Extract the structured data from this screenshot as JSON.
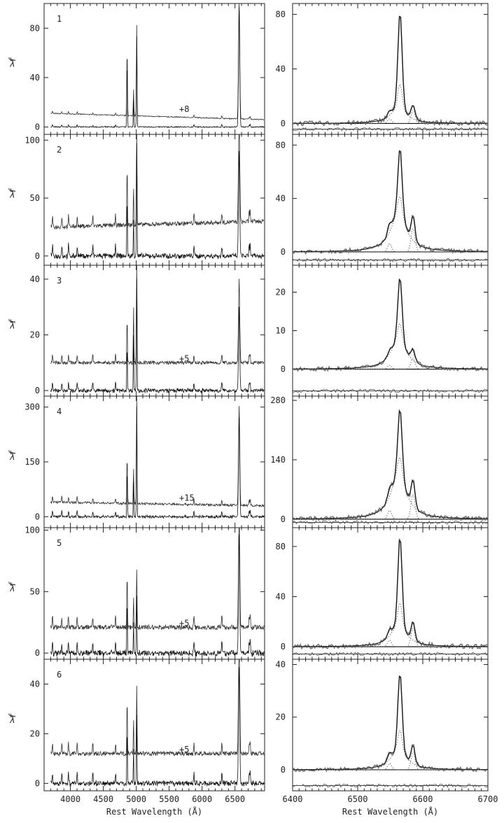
{
  "chart_data": {
    "type": "line",
    "xlabel_left": "Rest Wavelength (Å)",
    "xlabel_right": "Rest Wavelength (Å)",
    "ylabel": "f",
    "ylabel_sub": "λ",
    "left_x_range": [
      3600,
      6950
    ],
    "left_x_ticks": [
      4000,
      4500,
      5000,
      5500,
      6000,
      6500
    ],
    "left_x_ticklabels": [
      "4000",
      "4500",
      "5000",
      "5500",
      "6000",
      "6500"
    ],
    "right_x_range": [
      6400,
      6700
    ],
    "right_x_ticks": [
      6400,
      6500,
      6600,
      6700
    ],
    "right_x_ticklabels": [
      "6400",
      "6500",
      "6600",
      "6700"
    ],
    "panels": [
      {
        "id": "1",
        "offset_label": "+8",
        "offset": 8,
        "left_ylim": [
          -6,
          100
        ],
        "left_yticks": [
          0,
          40,
          80
        ],
        "left_yticklabels": [
          "0",
          "40",
          "80"
        ],
        "right_ylim": [
          -8,
          88
        ],
        "right_yticks": [
          0,
          40,
          80
        ],
        "right_yticklabels": [
          "0",
          "40",
          "80"
        ],
        "lines": [
          {
            "wl": 4861,
            "peak": 57
          },
          {
            "wl": 4959,
            "peak": 22
          },
          {
            "wl": 5007,
            "peak": 75
          },
          {
            "wl": 6563,
            "peak": 98
          }
        ],
        "ha_peak": 82,
        "broad_peak": 12,
        "n2_peak": 10,
        "cont": 3,
        "cont_slope": -5
      },
      {
        "id": "2",
        "offset_label": "",
        "offset": 10,
        "left_ylim": [
          -8,
          105
        ],
        "left_yticks": [
          0,
          50,
          100
        ],
        "left_yticklabels": [
          "0",
          "50",
          "100"
        ],
        "right_ylim": [
          -10,
          88
        ],
        "right_yticks": [
          0,
          40,
          80
        ],
        "right_yticklabels": [
          "0",
          "40",
          "80"
        ],
        "lines": [
          {
            "wl": 4861,
            "peak": 52
          },
          {
            "wl": 4959,
            "peak": 32
          },
          {
            "wl": 5007,
            "peak": 100
          },
          {
            "wl": 6563,
            "peak": 92
          }
        ],
        "ha_peak": 78,
        "broad_peak": 30,
        "n2_peak": 18,
        "cont": 15,
        "cont_slope": 5
      },
      {
        "id": "3",
        "offset_label": "+5",
        "offset": 5,
        "left_ylim": [
          -2,
          45
        ],
        "left_yticks": [
          0,
          20,
          40
        ],
        "left_yticklabels": [
          "0",
          "20",
          "40"
        ],
        "right_ylim": [
          -7,
          27
        ],
        "right_yticks": [
          0,
          10,
          20
        ],
        "right_yticklabels": [
          "0",
          "10",
          "20"
        ],
        "lines": [
          {
            "wl": 4861,
            "peak": 17
          },
          {
            "wl": 4959,
            "peak": 20
          },
          {
            "wl": 5007,
            "peak": 41
          },
          {
            "wl": 6563,
            "peak": 30
          }
        ],
        "ha_peak": 24,
        "broad_peak": 8,
        "n2_peak": 3,
        "cont": 5,
        "cont_slope": 0
      },
      {
        "id": "4",
        "offset_label": "+15",
        "offset": 15,
        "left_ylim": [
          -30,
          330
        ],
        "left_yticks": [
          0,
          150,
          300
        ],
        "left_yticklabels": [
          "0",
          "150",
          "300"
        ],
        "right_ylim": [
          -20,
          290
        ],
        "right_yticks": [
          0,
          140,
          280
        ],
        "right_yticklabels": [
          "0",
          "140",
          "280"
        ],
        "lines": [
          {
            "wl": 4861,
            "peak": 135
          },
          {
            "wl": 4959,
            "peak": 100
          },
          {
            "wl": 5007,
            "peak": 310
          },
          {
            "wl": 6563,
            "peak": 275
          }
        ],
        "ha_peak": 262,
        "broad_peak": 110,
        "n2_peak": 60,
        "cont": 25,
        "cont_slope": -10
      },
      {
        "id": "5",
        "offset_label": "+5",
        "offset": 5,
        "left_ylim": [
          -5,
          102
        ],
        "left_yticks": [
          0,
          50,
          100
        ],
        "left_yticklabels": [
          "0",
          "50",
          "100"
        ],
        "right_ylim": [
          -10,
          95
        ],
        "right_yticks": [
          0,
          40,
          80
        ],
        "right_yticklabels": [
          "0",
          "40",
          "80"
        ],
        "lines": [
          {
            "wl": 4861,
            "peak": 46
          },
          {
            "wl": 4959,
            "peak": 25
          },
          {
            "wl": 5007,
            "peak": 48
          },
          {
            "wl": 6563,
            "peak": 97
          }
        ],
        "ha_peak": 88,
        "broad_peak": 18,
        "n2_peak": 15,
        "cont": 16,
        "cont_slope": 0
      },
      {
        "id": "6",
        "offset_label": "+5",
        "offset": 5,
        "left_ylim": [
          -3,
          50
        ],
        "left_yticks": [
          0,
          20,
          40
        ],
        "left_yticklabels": [
          "0",
          "20",
          "40"
        ],
        "right_ylim": [
          -8,
          42
        ],
        "right_yticks": [
          0,
          20,
          40
        ],
        "right_yticklabels": [
          "0",
          "20",
          "40"
        ],
        "lines": [
          {
            "wl": 4861,
            "peak": 23
          },
          {
            "wl": 4959,
            "peak": 14
          },
          {
            "wl": 5007,
            "peak": 28
          },
          {
            "wl": 6563,
            "peak": 48
          }
        ],
        "ha_peak": 37,
        "broad_peak": 8,
        "n2_peak": 7,
        "cont": 7,
        "cont_slope": 0
      }
    ]
  }
}
